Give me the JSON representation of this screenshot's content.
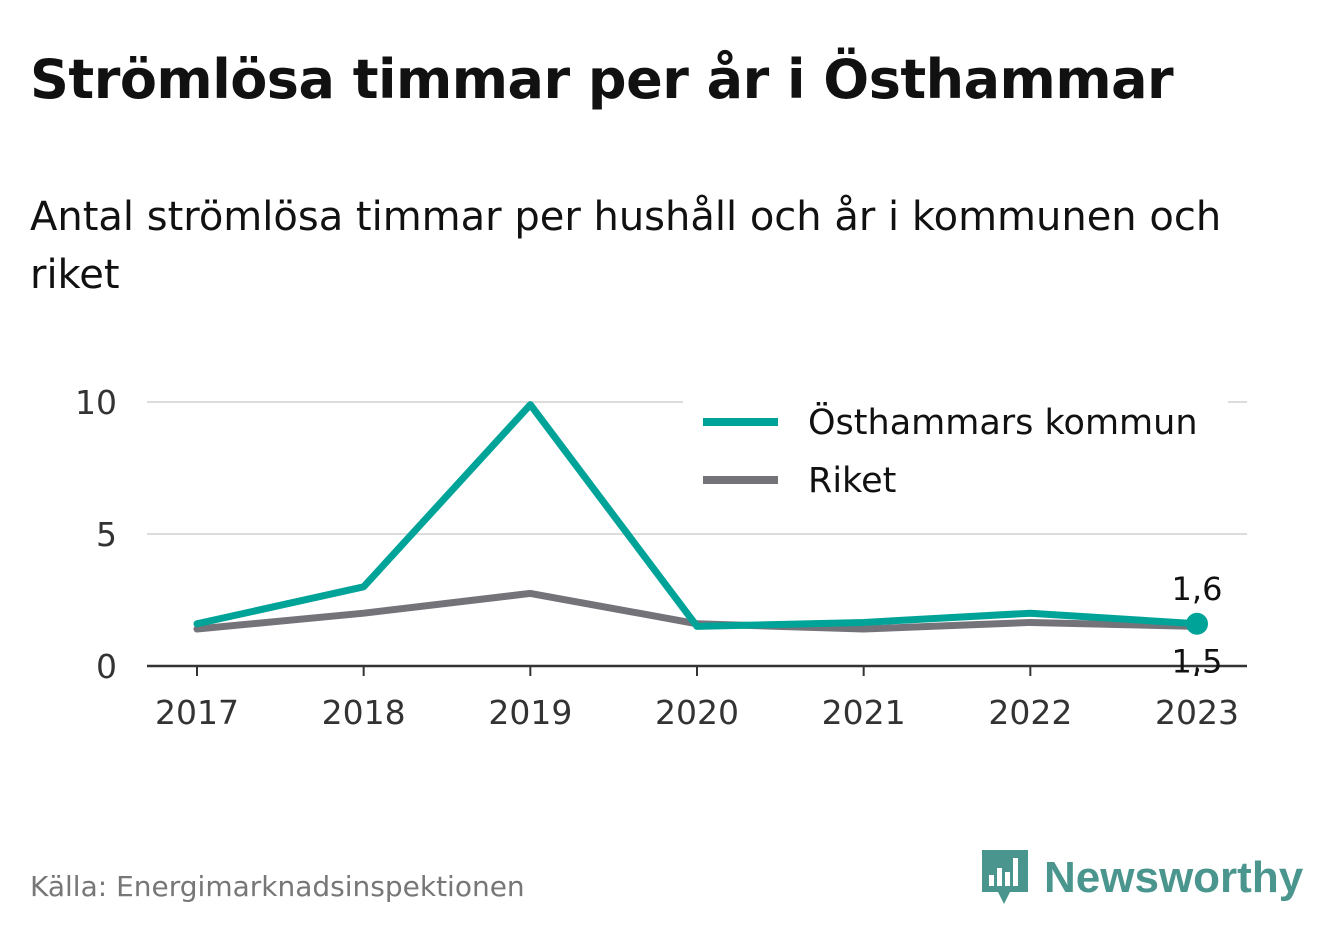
{
  "title": "Strömlösa timmar per år i Östhammar",
  "subtitle": "Antal strömlösa timmar per hushåll och år i kommunen och riket",
  "source": "Källa: Energimarknadsinspektionen",
  "brand": {
    "name": "Newsworthy",
    "icon": "newsworthy-bar-chart-icon",
    "color": "#4a958d"
  },
  "chart_data": {
    "type": "line",
    "x": [
      "2017",
      "2018",
      "2019",
      "2020",
      "2021",
      "2022",
      "2023"
    ],
    "series": [
      {
        "name": "Östhammars kommun",
        "color": "#00a398",
        "values": [
          1.6,
          3.0,
          9.9,
          1.5,
          1.65,
          2.0,
          1.6
        ]
      },
      {
        "name": "Riket",
        "color": "#75737a",
        "values": [
          1.4,
          2.0,
          2.75,
          1.6,
          1.4,
          1.65,
          1.5
        ]
      }
    ],
    "ylim": [
      0,
      10
    ],
    "yticks": [
      0,
      5,
      10
    ],
    "end_labels": [
      "1,6",
      "1,5"
    ],
    "legend_position": "top-right",
    "grid": true,
    "xlabel": "",
    "ylabel": ""
  }
}
